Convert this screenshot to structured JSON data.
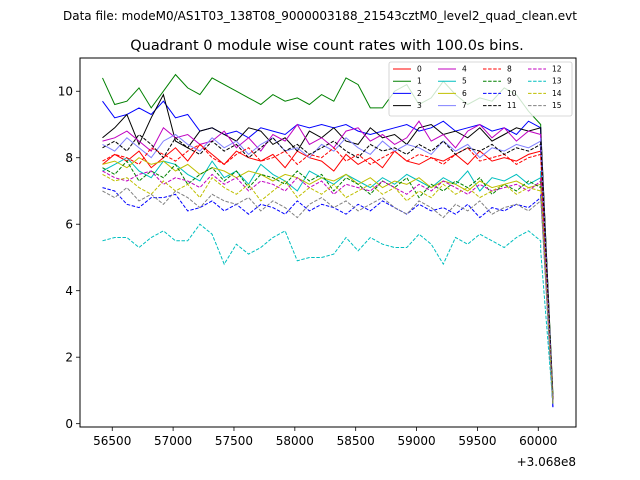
{
  "chart_data": {
    "type": "line",
    "suptitle": "Data file: modeM0/AS1T03_138T08_9000003188_21543cztM0_level2_quad_clean.evt",
    "title": "Quadrant 0 module wise count rates with 100.0s bins.",
    "xlabel": "",
    "ylabel": "",
    "offset_text": "+3.068e8",
    "xlim": [
      56235,
      60310
    ],
    "ylim": [
      -0.1,
      11.0
    ],
    "xticks": [
      56500,
      57000,
      57500,
      58000,
      58500,
      59000,
      59500,
      60000
    ],
    "yticks": [
      0,
      2,
      4,
      6,
      8,
      10
    ],
    "grid": false,
    "legend_placement": "top-right",
    "legend_columns": 4,
    "x_start": 56420,
    "x_step": 100,
    "x_end_points": [
      60020,
      60120
    ],
    "series": [
      {
        "name": "0",
        "color": "#ff0000",
        "dash": "solid",
        "values": [
          7.8,
          8.1,
          7.9,
          8.2,
          7.7,
          8.0,
          8.3,
          7.9,
          8.4,
          8.1,
          7.8,
          8.2,
          8.0,
          7.9,
          8.1,
          7.7,
          8.2,
          8.0,
          7.9,
          7.6,
          8.1,
          7.8,
          8.0,
          7.7,
          8.2,
          7.9,
          7.8,
          8.0,
          7.9,
          8.1,
          7.8,
          8.2,
          7.9,
          8.0,
          7.9,
          8.1,
          8.2
        ],
        "end": [
          8.3,
          0.7
        ]
      },
      {
        "name": "1",
        "color": "#008000",
        "dash": "solid",
        "values": [
          10.4,
          9.6,
          9.7,
          10.1,
          9.5,
          10.0,
          10.5,
          10.1,
          9.9,
          10.4,
          10.2,
          10.0,
          9.8,
          9.6,
          9.9,
          9.7,
          9.8,
          9.6,
          9.9,
          9.7,
          10.4,
          10.2,
          9.5,
          9.5,
          10.0,
          10.2,
          9.6,
          9.8,
          10.3,
          9.9,
          9.6,
          9.8,
          9.7,
          10.1,
          9.9,
          9.4,
          9.0
        ],
        "end": [
          8.8,
          0.9
        ]
      },
      {
        "name": "2",
        "color": "#0000ff",
        "dash": "solid",
        "values": [
          9.7,
          9.2,
          9.3,
          9.5,
          9.3,
          9.7,
          9.2,
          9.3,
          8.8,
          8.9,
          8.7,
          8.8,
          8.6,
          8.9,
          8.8,
          8.7,
          9.0,
          8.9,
          9.0,
          8.9,
          9.0,
          8.8,
          8.7,
          8.8,
          8.9,
          9.0,
          8.8,
          8.9,
          9.1,
          8.8,
          8.9,
          9.0,
          8.8,
          8.9,
          8.7,
          9.1,
          8.9
        ],
        "end": [
          8.2,
          0.5
        ]
      },
      {
        "name": "3",
        "color": "#000000",
        "dash": "solid",
        "values": [
          8.6,
          8.9,
          9.3,
          8.4,
          9.2,
          9.9,
          8.5,
          8.3,
          8.8,
          8.9,
          8.7,
          8.5,
          8.9,
          8.8,
          8.4,
          8.6,
          8.2,
          8.8,
          8.6,
          8.9,
          8.5,
          8.4,
          8.9,
          8.6,
          8.7,
          8.4,
          8.9,
          9.0,
          8.7,
          8.8,
          8.6,
          8.9,
          8.5,
          8.7,
          8.9,
          8.8,
          8.9
        ],
        "end": [
          8.9,
          0.8
        ]
      },
      {
        "name": "4",
        "color": "#c000c0",
        "dash": "solid",
        "values": [
          8.5,
          8.6,
          8.8,
          8.5,
          8.2,
          8.9,
          8.6,
          8.7,
          8.4,
          8.5,
          8.8,
          8.3,
          8.6,
          8.2,
          8.7,
          8.5,
          9.0,
          8.4,
          8.6,
          8.3,
          8.8,
          8.9,
          8.5,
          8.7,
          8.4,
          8.6,
          9.1,
          8.5,
          8.7,
          8.3,
          8.8,
          9.0,
          8.6,
          8.9,
          8.5,
          8.8,
          8.7
        ],
        "end": [
          8.5,
          0.6
        ]
      },
      {
        "name": "5",
        "color": "#00bfbf",
        "dash": "solid",
        "values": [
          7.6,
          7.8,
          8.0,
          7.6,
          7.4,
          7.9,
          7.8,
          7.5,
          7.3,
          7.9,
          7.4,
          7.6,
          7.2,
          7.8,
          7.5,
          7.3,
          7.0,
          7.6,
          7.4,
          7.2,
          7.5,
          7.3,
          7.1,
          7.4,
          7.2,
          7.5,
          7.3,
          7.1,
          7.4,
          7.2,
          7.6,
          7.0,
          7.4,
          7.3,
          7.5,
          7.2,
          7.4
        ],
        "end": [
          7.6,
          0.6
        ]
      },
      {
        "name": "6",
        "color": "#bfbf00",
        "dash": "solid",
        "values": [
          7.8,
          7.9,
          7.7,
          8.0,
          7.8,
          7.9,
          7.6,
          7.8,
          7.5,
          7.7,
          7.6,
          7.4,
          7.6,
          7.5,
          7.3,
          7.5,
          7.4,
          7.2,
          7.4,
          7.3,
          7.5,
          7.2,
          7.4,
          7.1,
          7.3,
          7.2,
          7.4,
          7.1,
          7.3,
          7.2,
          7.0,
          7.3,
          7.1,
          7.2,
          7.3,
          7.1,
          7.2
        ],
        "end": [
          7.4,
          0.6
        ]
      },
      {
        "name": "7",
        "color": "#8080ff",
        "dash": "solid",
        "values": [
          8.4,
          8.2,
          8.6,
          8.3,
          8.0,
          8.5,
          8.7,
          8.4,
          8.2,
          8.6,
          8.3,
          8.5,
          8.1,
          8.4,
          8.6,
          8.2,
          8.3,
          8.0,
          8.4,
          8.2,
          8.6,
          8.3,
          8.1,
          8.5,
          8.2,
          8.4,
          8.3,
          8.1,
          8.5,
          8.2,
          8.4,
          8.0,
          8.3,
          8.2,
          8.4,
          8.3,
          8.5
        ],
        "end": [
          8.6,
          0.7
        ]
      },
      {
        "name": "8",
        "color": "#ff0000",
        "dash": "dashed",
        "values": [
          7.9,
          8.1,
          8.0,
          7.8,
          8.3,
          8.1,
          7.9,
          8.2,
          8.4,
          8.0,
          7.8,
          8.1,
          8.3,
          7.9,
          8.0,
          8.2,
          7.8,
          8.1,
          8.0,
          8.3,
          7.9,
          8.1,
          7.8,
          8.0,
          8.2,
          7.9,
          8.1,
          8.0,
          7.8,
          8.1,
          8.3,
          7.9,
          8.0,
          8.1,
          7.8,
          8.0,
          8.1
        ],
        "end": [
          8.0,
          0.7
        ]
      },
      {
        "name": "9",
        "color": "#008000",
        "dash": "dashed",
        "values": [
          7.7,
          7.5,
          7.9,
          7.3,
          7.6,
          7.4,
          7.8,
          7.2,
          7.5,
          7.7,
          7.3,
          7.6,
          7.1,
          7.5,
          7.4,
          7.2,
          7.6,
          7.3,
          7.5,
          7.0,
          7.4,
          7.2,
          6.9,
          7.3,
          7.1,
          7.4,
          6.8,
          7.2,
          7.0,
          7.3,
          7.1,
          7.4,
          6.9,
          7.2,
          7.0,
          7.3,
          7.1
        ],
        "end": [
          7.3,
          0.6
        ]
      },
      {
        "name": "10",
        "color": "#0000ff",
        "dash": "dashed",
        "values": [
          7.1,
          7.0,
          6.6,
          6.5,
          6.8,
          6.8,
          6.9,
          6.4,
          6.5,
          6.7,
          6.4,
          6.6,
          6.3,
          6.6,
          6.5,
          6.3,
          6.7,
          6.4,
          6.6,
          6.5,
          6.3,
          6.6,
          6.4,
          6.7,
          6.5,
          6.3,
          6.6,
          6.4,
          6.5,
          6.3,
          6.6,
          6.2,
          6.5,
          6.4,
          6.6,
          6.5,
          6.8
        ],
        "end": [
          6.9,
          0.5
        ]
      },
      {
        "name": "11",
        "color": "#000000",
        "dash": "dashed",
        "values": [
          8.3,
          8.5,
          8.2,
          8.7,
          8.4,
          8.0,
          8.6,
          8.3,
          8.1,
          8.5,
          8.2,
          8.4,
          8.0,
          8.3,
          8.6,
          8.2,
          8.4,
          8.1,
          8.3,
          8.5,
          8.2,
          8.0,
          8.4,
          8.2,
          8.3,
          8.1,
          8.4,
          8.2,
          8.5,
          8.1,
          8.3,
          8.2,
          8.4,
          8.1,
          8.3,
          8.2,
          8.4
        ],
        "end": [
          8.5,
          0.7
        ]
      },
      {
        "name": "12",
        "color": "#c000c0",
        "dash": "dashed",
        "values": [
          7.6,
          7.4,
          7.3,
          7.5,
          7.6,
          7.2,
          7.4,
          7.3,
          7.1,
          7.5,
          7.2,
          7.4,
          7.0,
          7.3,
          7.2,
          7.0,
          7.4,
          7.1,
          7.3,
          6.9,
          7.2,
          7.1,
          7.0,
          7.3,
          7.1,
          6.9,
          7.2,
          7.0,
          7.3,
          7.1,
          6.9,
          7.2,
          7.0,
          7.1,
          7.2,
          7.0,
          7.3
        ],
        "end": [
          7.4,
          0.6
        ]
      },
      {
        "name": "13",
        "color": "#00bfbf",
        "dash": "dashed",
        "values": [
          5.5,
          5.6,
          5.6,
          5.3,
          5.6,
          5.8,
          5.5,
          5.5,
          6.0,
          5.7,
          4.8,
          5.4,
          5.1,
          5.3,
          5.6,
          5.8,
          4.9,
          5.0,
          5.0,
          5.1,
          5.6,
          5.2,
          5.6,
          5.4,
          5.3,
          5.3,
          5.7,
          5.4,
          4.8,
          5.6,
          5.4,
          5.7,
          5.5,
          5.3,
          5.6,
          5.8,
          5.5
        ],
        "end": [
          5.2,
          0.6
        ]
      },
      {
        "name": "14",
        "color": "#bfbf00",
        "dash": "dashed",
        "values": [
          7.5,
          7.3,
          7.4,
          7.1,
          6.9,
          7.3,
          7.0,
          7.2,
          6.8,
          7.4,
          7.1,
          6.9,
          7.2,
          6.7,
          7.0,
          7.3,
          6.8,
          7.1,
          6.9,
          7.2,
          6.8,
          7.0,
          7.2,
          6.9,
          7.1,
          6.7,
          7.0,
          6.8,
          7.2,
          6.9,
          7.1,
          6.8,
          7.0,
          7.2,
          6.9,
          7.1,
          7.0
        ],
        "end": [
          7.1,
          0.6
        ]
      },
      {
        "name": "15",
        "color": "#808080",
        "dash": "dashed",
        "values": [
          7.0,
          6.8,
          7.1,
          6.7,
          6.9,
          6.6,
          7.0,
          6.8,
          6.5,
          6.9,
          6.7,
          6.6,
          6.8,
          6.4,
          6.7,
          6.5,
          6.2,
          6.6,
          6.8,
          6.5,
          6.7,
          6.4,
          6.6,
          6.8,
          6.5,
          6.3,
          6.7,
          6.5,
          6.2,
          6.6,
          6.4,
          6.7,
          6.3,
          6.5,
          6.6,
          6.4,
          6.7
        ],
        "end": [
          6.8,
          0.6
        ]
      }
    ]
  }
}
